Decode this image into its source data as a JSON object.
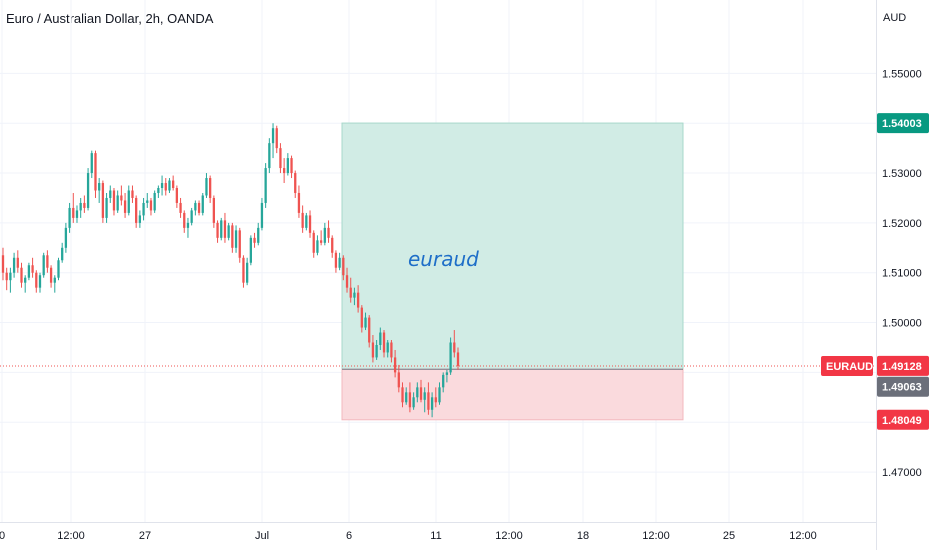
{
  "header": {
    "title": "Euro / Australian Dollar, 2h, OANDA"
  },
  "chart_data": {
    "type": "candlestick",
    "symbol": "EURAUD",
    "currency": "AUD",
    "y_ticks": [
      "1.55000",
      "1.53000",
      "1.52000",
      "1.51000",
      "1.50000",
      "1.47000"
    ],
    "ylim": [
      1.4656,
      1.5575
    ],
    "x_ticks": [
      "0",
      "12:00",
      "27",
      "Jul",
      "6",
      "11",
      "12:00",
      "18",
      "12:00",
      "25",
      "12:00"
    ],
    "grid": true,
    "position": {
      "label": "euraud",
      "entry": 1.49063,
      "target": 1.54003,
      "stop": 1.48049,
      "profit_color": "#d1ece5",
      "loss_color": "#fadadd"
    },
    "price_labels": {
      "symbol_label": "EURAUD",
      "last_price": "1.49128",
      "entry_price": "1.49063",
      "target_price": "1.54003",
      "stop_price": "1.48049"
    },
    "colors": {
      "up": "#26a69a",
      "down": "#ef5350",
      "target_bg": "#089981",
      "stop_bg": "#f23645",
      "entry_bg": "#6b6f7a",
      "last_bg": "#f23645"
    },
    "candles": [
      [
        1.5135,
        1.515,
        1.5085,
        1.51
      ],
      [
        1.51,
        1.511,
        1.5065,
        1.5085
      ],
      [
        1.5085,
        1.511,
        1.506,
        1.51
      ],
      [
        1.51,
        1.514,
        1.509,
        1.513
      ],
      [
        1.513,
        1.5145,
        1.51,
        1.511
      ],
      [
        1.511,
        1.512,
        1.507,
        1.508
      ],
      [
        1.508,
        1.5095,
        1.506,
        1.509
      ],
      [
        1.509,
        1.512,
        1.5085,
        1.5115
      ],
      [
        1.5115,
        1.513,
        1.509,
        1.51
      ],
      [
        1.51,
        1.5105,
        1.506,
        1.507
      ],
      [
        1.507,
        1.51,
        1.506,
        1.5095
      ],
      [
        1.5095,
        1.514,
        1.509,
        1.5135
      ],
      [
        1.5135,
        1.5145,
        1.51,
        1.511
      ],
      [
        1.511,
        1.5115,
        1.507,
        1.508
      ],
      [
        1.508,
        1.5095,
        1.506,
        1.509
      ],
      [
        1.509,
        1.513,
        1.5085,
        1.5125
      ],
      [
        1.5125,
        1.516,
        1.512,
        1.515
      ],
      [
        1.515,
        1.52,
        1.514,
        1.519
      ],
      [
        1.519,
        1.524,
        1.518,
        1.523
      ],
      [
        1.523,
        1.526,
        1.52,
        1.521
      ],
      [
        1.521,
        1.5235,
        1.52,
        1.5225
      ],
      [
        1.5225,
        1.525,
        1.521,
        1.524
      ],
      [
        1.524,
        1.5255,
        1.522,
        1.523
      ],
      [
        1.523,
        1.531,
        1.5225,
        1.53
      ],
      [
        1.53,
        1.5345,
        1.529,
        1.534
      ],
      [
        1.534,
        1.5345,
        1.525,
        1.5265
      ],
      [
        1.5265,
        1.529,
        1.524,
        1.528
      ],
      [
        1.528,
        1.5285,
        1.52,
        1.521
      ],
      [
        1.521,
        1.526,
        1.52,
        1.525
      ],
      [
        1.525,
        1.5275,
        1.524,
        1.5265
      ],
      [
        1.5265,
        1.527,
        1.5215,
        1.5225
      ],
      [
        1.5225,
        1.5265,
        1.522,
        1.5255
      ],
      [
        1.5255,
        1.5275,
        1.5235,
        1.5245
      ],
      [
        1.5245,
        1.526,
        1.521,
        1.522
      ],
      [
        1.522,
        1.5275,
        1.5215,
        1.5265
      ],
      [
        1.5265,
        1.5275,
        1.524,
        1.525
      ],
      [
        1.525,
        1.5255,
        1.519,
        1.52
      ],
      [
        1.52,
        1.5225,
        1.519,
        1.5215
      ],
      [
        1.5215,
        1.525,
        1.5205,
        1.524
      ],
      [
        1.524,
        1.526,
        1.523,
        1.5245
      ],
      [
        1.5245,
        1.525,
        1.5215,
        1.5225
      ],
      [
        1.5225,
        1.5265,
        1.522,
        1.526
      ],
      [
        1.526,
        1.5275,
        1.525,
        1.527
      ],
      [
        1.527,
        1.5295,
        1.5255,
        1.528
      ],
      [
        1.528,
        1.529,
        1.5255,
        1.5265
      ],
      [
        1.5265,
        1.529,
        1.526,
        1.5285
      ],
      [
        1.5285,
        1.5295,
        1.5265,
        1.527
      ],
      [
        1.527,
        1.5275,
        1.523,
        1.524
      ],
      [
        1.524,
        1.525,
        1.521,
        1.522
      ],
      [
        1.522,
        1.5225,
        1.518,
        1.519
      ],
      [
        1.519,
        1.521,
        1.517,
        1.52
      ],
      [
        1.52,
        1.523,
        1.5195,
        1.5225
      ],
      [
        1.5225,
        1.5245,
        1.5215,
        1.524
      ],
      [
        1.524,
        1.5245,
        1.5215,
        1.522
      ],
      [
        1.522,
        1.526,
        1.5215,
        1.5255
      ],
      [
        1.5255,
        1.53,
        1.525,
        1.529
      ],
      [
        1.529,
        1.5295,
        1.524,
        1.525
      ],
      [
        1.525,
        1.5255,
        1.519,
        1.52
      ],
      [
        1.52,
        1.5205,
        1.516,
        1.517
      ],
      [
        1.517,
        1.521,
        1.5165,
        1.5205
      ],
      [
        1.5205,
        1.522,
        1.516,
        1.517
      ],
      [
        1.517,
        1.52,
        1.5165,
        1.5195
      ],
      [
        1.5195,
        1.52,
        1.514,
        1.515
      ],
      [
        1.515,
        1.5195,
        1.514,
        1.5185
      ],
      [
        1.5185,
        1.519,
        1.512,
        1.513
      ],
      [
        1.513,
        1.5135,
        1.507,
        1.508
      ],
      [
        1.508,
        1.513,
        1.5075,
        1.512
      ],
      [
        1.512,
        1.5175,
        1.5115,
        1.517
      ],
      [
        1.517,
        1.518,
        1.515,
        1.516
      ],
      [
        1.516,
        1.52,
        1.5155,
        1.519
      ],
      [
        1.519,
        1.525,
        1.5185,
        1.524
      ],
      [
        1.524,
        1.532,
        1.523,
        1.531
      ],
      [
        1.531,
        1.537,
        1.53,
        1.536
      ],
      [
        1.536,
        1.54,
        1.533,
        1.539
      ],
      [
        1.539,
        1.5395,
        1.534,
        1.535
      ],
      [
        1.535,
        1.536,
        1.53,
        1.531
      ],
      [
        1.531,
        1.533,
        1.528,
        1.53
      ],
      [
        1.53,
        1.534,
        1.5295,
        1.533
      ],
      [
        1.533,
        1.5335,
        1.529,
        1.53
      ],
      [
        1.53,
        1.5305,
        1.525,
        1.526
      ],
      [
        1.526,
        1.5275,
        1.521,
        1.522
      ],
      [
        1.522,
        1.5235,
        1.518,
        1.519
      ],
      [
        1.519,
        1.522,
        1.5185,
        1.5215
      ],
      [
        1.5215,
        1.5225,
        1.517,
        1.518
      ],
      [
        1.518,
        1.5185,
        1.513,
        1.514
      ],
      [
        1.514,
        1.5175,
        1.5135,
        1.5165
      ],
      [
        1.5165,
        1.5185,
        1.5155,
        1.516
      ],
      [
        1.516,
        1.52,
        1.5155,
        1.519
      ],
      [
        1.519,
        1.5205,
        1.516,
        1.517
      ],
      [
        1.517,
        1.5175,
        1.513,
        1.514
      ],
      [
        1.514,
        1.5145,
        1.51,
        1.511
      ],
      [
        1.511,
        1.514,
        1.5105,
        1.513
      ],
      [
        1.513,
        1.5135,
        1.5085,
        1.5095
      ],
      [
        1.5095,
        1.511,
        1.506,
        1.507
      ],
      [
        1.507,
        1.509,
        1.504,
        1.505
      ],
      [
        1.505,
        1.507,
        1.5035,
        1.506
      ],
      [
        1.506,
        1.5075,
        1.502,
        1.503
      ],
      [
        1.503,
        1.5035,
        1.498,
        1.499
      ],
      [
        1.499,
        1.502,
        1.4985,
        1.501
      ],
      [
        1.501,
        1.5015,
        1.495,
        1.496
      ],
      [
        1.496,
        1.4975,
        1.492,
        1.493
      ],
      [
        1.493,
        1.4965,
        1.4925,
        1.4955
      ],
      [
        1.4955,
        1.499,
        1.4945,
        1.498
      ],
      [
        1.498,
        1.4985,
        1.493,
        1.494
      ],
      [
        1.494,
        1.4965,
        1.493,
        1.496
      ],
      [
        1.496,
        1.4965,
        1.492,
        1.493
      ],
      [
        1.493,
        1.4945,
        1.489,
        1.49
      ],
      [
        1.49,
        1.4915,
        1.486,
        1.487
      ],
      [
        1.487,
        1.488,
        1.483,
        1.484
      ],
      [
        1.484,
        1.487,
        1.4835,
        1.486
      ],
      [
        1.486,
        1.488,
        1.482,
        1.483
      ],
      [
        1.483,
        1.486,
        1.4825,
        1.485
      ],
      [
        1.485,
        1.488,
        1.484,
        1.487
      ],
      [
        1.487,
        1.4885,
        1.484,
        1.4845
      ],
      [
        1.4845,
        1.487,
        1.482,
        1.486
      ],
      [
        1.486,
        1.488,
        1.4815,
        1.4825
      ],
      [
        1.4825,
        1.486,
        1.481,
        1.485
      ],
      [
        1.485,
        1.487,
        1.483,
        1.484
      ],
      [
        1.484,
        1.488,
        1.4835,
        1.487
      ],
      [
        1.487,
        1.49,
        1.486,
        1.4895
      ],
      [
        1.4895,
        1.4905,
        1.488,
        1.49
      ],
      [
        1.49,
        1.497,
        1.4895,
        1.496
      ],
      [
        1.496,
        1.4985,
        1.493,
        1.494
      ],
      [
        1.494,
        1.495,
        1.4905,
        1.4913
      ]
    ]
  }
}
